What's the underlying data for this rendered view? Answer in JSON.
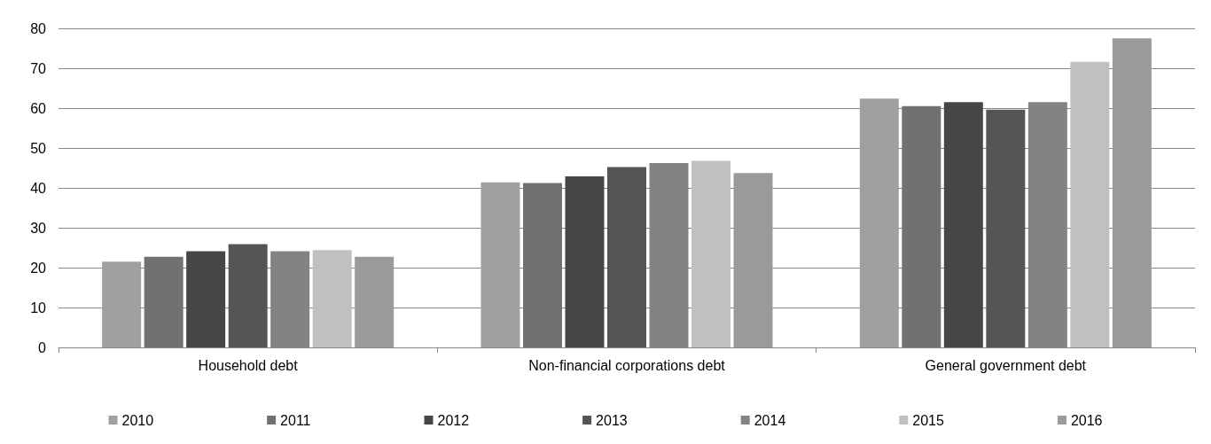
{
  "chart_data": {
    "type": "bar",
    "categories": [
      "Household debt",
      "Non-financial corporations debt",
      "General government debt"
    ],
    "series": [
      {
        "name": "2010",
        "color": "#a0a0a0",
        "values": [
          21.5,
          41.4,
          62.4
        ]
      },
      {
        "name": "2011",
        "color": "#717171",
        "values": [
          22.7,
          41.2,
          60.5
        ]
      },
      {
        "name": "2012",
        "color": "#464646",
        "values": [
          24.1,
          42.9,
          61.5
        ]
      },
      {
        "name": "2013",
        "color": "#555555",
        "values": [
          25.9,
          45.2,
          59.6
        ]
      },
      {
        "name": "2014",
        "color": "#838383",
        "values": [
          24.1,
          46.2,
          61.5
        ]
      },
      {
        "name": "2015",
        "color": "#c0c0c0",
        "values": [
          24.4,
          46.8,
          71.6
        ]
      },
      {
        "name": "2016",
        "color": "#9a9a9a",
        "values": [
          22.7,
          43.7,
          77.5
        ]
      }
    ],
    "ylim": [
      0,
      80
    ],
    "yticks": [
      0,
      10,
      20,
      30,
      40,
      50,
      60,
      70,
      80
    ],
    "grid": "y",
    "legend": "bottom"
  }
}
